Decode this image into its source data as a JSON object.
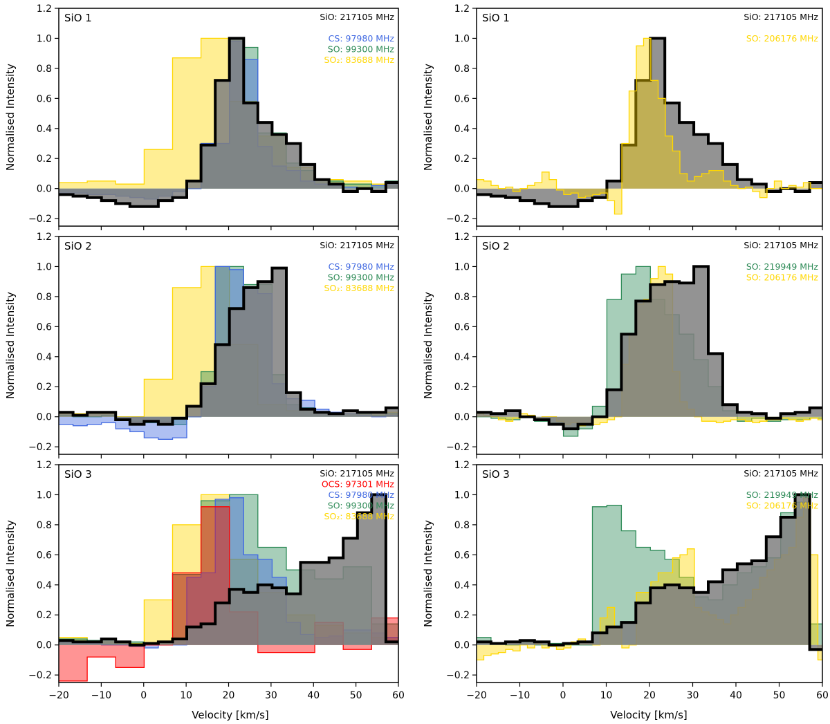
{
  "figure": {
    "xlabel": "Velocity [km/s]",
    "ylabel": "Normalised Intensity"
  },
  "colors": {
    "SiO": "#000000",
    "CS": "#4169e1",
    "SO": "#2e8b57",
    "SO2": "#ffd700",
    "OCS": "#ff0000",
    "SiO_fill": "#808080"
  },
  "chart_data": [
    {
      "type": "step-area",
      "panel": "left-1",
      "title": "SiO 1",
      "xlim": [
        -20,
        60
      ],
      "ylim": [
        -0.25,
        1.2
      ],
      "xticks": [
        -20,
        -10,
        0,
        10,
        20,
        30,
        40,
        50,
        60
      ],
      "yticks": [
        -0.2,
        0.0,
        0.2,
        0.4,
        0.6,
        0.8,
        1.0,
        1.2
      ],
      "ref_label": "SiO: 217105 MHz",
      "legend": [
        {
          "text": "CS: 97980 MHz",
          "mol": "CS"
        },
        {
          "text": "SO: 99300 MHz",
          "mol": "SO"
        },
        {
          "text": "SO₂: 83688 MHz",
          "mol": "SO2"
        }
      ],
      "series": [
        {
          "name": "SO2",
          "x0": -20,
          "dx": 6.7,
          "values": [
            0.04,
            0.05,
            0.03,
            0.26,
            0.87,
            1.0,
            0.58,
            0.35,
            0.14,
            0.06,
            0.05,
            0.03
          ]
        },
        {
          "name": "SO",
          "x0": -20,
          "dx": 3.35,
          "values": [
            -0.03,
            -0.03,
            -0.04,
            -0.04,
            -0.05,
            -0.06,
            -0.07,
            -0.05,
            -0.02,
            0.0,
            0.3,
            0.3,
            0.99,
            0.94,
            0.37,
            0.37,
            0.17,
            0.12,
            0.06,
            0.05,
            0.03,
            0.03,
            0.02,
            0.05
          ]
        },
        {
          "name": "CS",
          "x0": -20,
          "dx": 3.35,
          "values": [
            -0.03,
            -0.03,
            -0.04,
            -0.04,
            -0.05,
            -0.06,
            -0.07,
            -0.05,
            -0.02,
            0.0,
            0.3,
            0.3,
            0.98,
            0.86,
            0.28,
            0.15,
            0.12,
            0.05,
            0.03,
            0.02,
            0.01,
            0.0,
            0.02,
            0.03
          ]
        },
        {
          "name": "SiO",
          "x0": -20,
          "dx": 3.35,
          "values": [
            -0.04,
            -0.05,
            -0.06,
            -0.08,
            -0.1,
            -0.12,
            -0.12,
            -0.08,
            -0.06,
            0.05,
            0.29,
            0.72,
            1.0,
            0.57,
            0.44,
            0.36,
            0.3,
            0.16,
            0.06,
            0.03,
            -0.02,
            0.0,
            -0.02,
            0.04
          ]
        }
      ]
    },
    {
      "type": "step-area",
      "panel": "right-1",
      "title": "SiO 1",
      "xlim": [
        -20,
        60
      ],
      "ylim": [
        -0.25,
        1.2
      ],
      "xticks": [
        -20,
        -10,
        0,
        10,
        20,
        30,
        40,
        50,
        60
      ],
      "yticks": [
        -0.2,
        0.0,
        0.2,
        0.4,
        0.6,
        0.8,
        1.0,
        1.2
      ],
      "ref_label": "SiO: 217105 MHz",
      "legend": [
        {
          "text": "SO: 206176 MHz",
          "mol": "SO2"
        }
      ],
      "series": [
        {
          "name": "SiO",
          "x0": -20,
          "dx": 3.35,
          "values": [
            -0.04,
            -0.05,
            -0.06,
            -0.08,
            -0.1,
            -0.12,
            -0.12,
            -0.08,
            -0.06,
            0.05,
            0.29,
            0.72,
            1.0,
            0.57,
            0.44,
            0.36,
            0.3,
            0.16,
            0.06,
            0.03,
            -0.02,
            0.0,
            -0.02,
            0.04
          ]
        },
        {
          "name": "SO2",
          "x0": -20,
          "dx": 1.68,
          "values": [
            0.06,
            0.05,
            0.02,
            0.0,
            0.01,
            -0.02,
            0.0,
            0.02,
            0.04,
            0.11,
            0.06,
            -0.01,
            -0.04,
            -0.03,
            -0.06,
            -0.05,
            -0.04,
            -0.03,
            -0.08,
            -0.17,
            0.3,
            0.65,
            0.95,
            1.0,
            0.72,
            0.6,
            0.35,
            0.25,
            0.1,
            0.05,
            0.08,
            0.1,
            0.12,
            0.12,
            0.05,
            0.02,
            0.0,
            0.01,
            -0.02,
            -0.06,
            0.0,
            0.05,
            0.0,
            0.02,
            0.01,
            0.04,
            0.0,
            0.0
          ]
        }
      ]
    },
    {
      "type": "step-area",
      "panel": "left-2",
      "title": "SiO 2",
      "xlim": [
        -20,
        60
      ],
      "ylim": [
        -0.25,
        1.2
      ],
      "xticks": [
        -20,
        -10,
        0,
        10,
        20,
        30,
        40,
        50,
        60
      ],
      "yticks": [
        -0.2,
        0.0,
        0.2,
        0.4,
        0.6,
        0.8,
        1.0,
        1.2
      ],
      "ref_label": "SiO: 217105 MHz",
      "legend": [
        {
          "text": "CS: 97980 MHz",
          "mol": "CS"
        },
        {
          "text": "SO: 99300 MHz",
          "mol": "SO"
        },
        {
          "text": "SO₂: 83688 MHz",
          "mol": "SO2"
        }
      ],
      "series": [
        {
          "name": "SO2",
          "x0": -20,
          "dx": 6.7,
          "values": [
            0.02,
            0.02,
            0.0,
            0.25,
            0.86,
            1.0,
            0.48,
            0.08,
            0.04,
            0.03,
            0.02,
            0.03
          ]
        },
        {
          "name": "SO",
          "x0": -20,
          "dx": 3.35,
          "values": [
            0.01,
            0.0,
            0.0,
            0.01,
            -0.02,
            -0.03,
            -0.04,
            -0.03,
            -0.05,
            0.0,
            0.3,
            1.0,
            1.0,
            0.88,
            0.88,
            0.28,
            0.08,
            0.06,
            0.03,
            0.02,
            0.02,
            0.02,
            0.01,
            0.02
          ]
        },
        {
          "name": "CS",
          "x0": -20,
          "dx": 3.35,
          "values": [
            -0.05,
            -0.06,
            -0.05,
            -0.04,
            -0.08,
            -0.1,
            -0.14,
            -0.15,
            -0.14,
            0.0,
            0.2,
            1.0,
            0.98,
            0.85,
            0.82,
            0.22,
            0.12,
            0.11,
            0.05,
            0.03,
            0.02,
            0.01,
            0.0,
            0.01
          ]
        },
        {
          "name": "SiO",
          "x0": -20,
          "dx": 3.35,
          "values": [
            0.03,
            0.01,
            0.03,
            0.03,
            -0.02,
            -0.05,
            -0.03,
            -0.05,
            -0.01,
            0.07,
            0.22,
            0.48,
            0.72,
            0.86,
            0.9,
            0.99,
            0.16,
            0.05,
            0.03,
            0.02,
            0.04,
            0.03,
            0.03,
            0.06
          ]
        }
      ]
    },
    {
      "type": "step-area",
      "panel": "right-2",
      "title": "SiO 2",
      "xlim": [
        -20,
        60
      ],
      "ylim": [
        -0.25,
        1.2
      ],
      "xticks": [
        -20,
        -10,
        0,
        10,
        20,
        30,
        40,
        50,
        60
      ],
      "yticks": [
        -0.2,
        0.0,
        0.2,
        0.4,
        0.6,
        0.8,
        1.0,
        1.2
      ],
      "ref_label": "SiO: 217105 MHz",
      "legend": [
        {
          "text": "SO: 219949 MHz",
          "mol": "SO"
        },
        {
          "text": "SO: 206176 MHz",
          "mol": "SO2"
        }
      ],
      "series": [
        {
          "name": "SO",
          "x0": -20,
          "dx": 3.35,
          "values": [
            0.0,
            -0.01,
            -0.02,
            0.0,
            -0.03,
            -0.04,
            -0.13,
            -0.08,
            0.07,
            0.78,
            0.95,
            1.0,
            0.78,
            0.68,
            0.55,
            0.38,
            0.2,
            0.04,
            -0.03,
            -0.01,
            -0.03,
            -0.02,
            -0.02,
            -0.01
          ]
        },
        {
          "name": "SO2",
          "x0": -20,
          "dx": 1.68,
          "values": [
            0.02,
            0.01,
            0.0,
            -0.02,
            -0.03,
            -0.01,
            0.02,
            0.01,
            -0.02,
            0.0,
            0.0,
            -0.03,
            -0.05,
            -0.04,
            -0.06,
            -0.05,
            -0.05,
            -0.04,
            -0.02,
            0.0,
            0.35,
            0.55,
            0.75,
            0.78,
            0.92,
            1.0,
            0.95,
            0.3,
            0.1,
            0.05,
            0.0,
            -0.03,
            -0.03,
            -0.04,
            -0.03,
            -0.02,
            -0.02,
            -0.03,
            -0.04,
            -0.03,
            -0.02,
            -0.02,
            -0.01,
            -0.02,
            -0.03,
            -0.02,
            -0.01,
            -0.02
          ]
        },
        {
          "name": "SiO",
          "x0": -20,
          "dx": 3.35,
          "values": [
            0.03,
            0.02,
            0.04,
            0.0,
            -0.02,
            -0.05,
            -0.08,
            -0.05,
            0.0,
            0.18,
            0.55,
            0.77,
            0.88,
            0.9,
            0.89,
            1.0,
            0.42,
            0.08,
            0.03,
            0.02,
            -0.01,
            0.02,
            0.03,
            0.06
          ]
        }
      ]
    },
    {
      "type": "step-area",
      "panel": "left-3",
      "title": "SiO 3",
      "xlim": [
        -20,
        60
      ],
      "ylim": [
        -0.25,
        1.2
      ],
      "xticks": [
        -20,
        -10,
        0,
        10,
        20,
        30,
        40,
        50,
        60
      ],
      "yticks": [
        -0.2,
        0.0,
        0.2,
        0.4,
        0.6,
        0.8,
        1.0,
        1.2
      ],
      "ref_label": "SiO: 217105 MHz",
      "legend": [
        {
          "text": "OCS: 97301 MHz",
          "mol": "OCS"
        },
        {
          "text": "CS: 97980 MHz",
          "mol": "CS"
        },
        {
          "text": "SO: 99300 MHz",
          "mol": "SO"
        },
        {
          "text": "SO₂: 83688 MHz",
          "mol": "SO2"
        }
      ],
      "series": [
        {
          "name": "SO2",
          "x0": -20,
          "dx": 6.7,
          "values": [
            0.05,
            0.02,
            0.01,
            0.3,
            0.8,
            1.0,
            0.57,
            0.35,
            0.2,
            0.13,
            0.08,
            0.05
          ]
        },
        {
          "name": "SO",
          "x0": -20,
          "dx": 6.7,
          "values": [
            0.04,
            0.03,
            0.02,
            0.0,
            0.47,
            0.96,
            1.0,
            0.65,
            0.5,
            0.44,
            0.52,
            0.14
          ]
        },
        {
          "name": "CS",
          "x0": -20,
          "dx": 3.35,
          "values": [
            0.02,
            0.01,
            0.01,
            0.0,
            0.0,
            -0.01,
            -0.02,
            0.0,
            0.0,
            0.45,
            0.48,
            0.97,
            0.98,
            0.6,
            0.57,
            0.45,
            0.15,
            0.07,
            0.05,
            0.06,
            0.1,
            0.1,
            0.08,
            0.05
          ]
        },
        {
          "name": "OCS",
          "x0": -20,
          "dx": 6.7,
          "values": [
            -0.24,
            -0.08,
            -0.15,
            0.0,
            0.48,
            0.92,
            0.22,
            -0.05,
            -0.05,
            0.15,
            -0.03,
            0.18
          ]
        },
        {
          "name": "SiO",
          "x0": -20,
          "dx": 3.35,
          "values": [
            0.03,
            0.02,
            0.02,
            0.04,
            0.02,
            0.0,
            0.01,
            0.02,
            0.04,
            0.12,
            0.14,
            0.28,
            0.37,
            0.35,
            0.4,
            0.38,
            0.34,
            0.55,
            0.55,
            0.58,
            0.71,
            0.88,
            1.0,
            0.02
          ]
        }
      ]
    },
    {
      "type": "step-area",
      "panel": "right-3",
      "title": "SiO 3",
      "xlim": [
        -20,
        60
      ],
      "ylim": [
        -0.25,
        1.2
      ],
      "xticks": [
        -20,
        -10,
        0,
        10,
        20,
        30,
        40,
        50,
        60
      ],
      "yticks": [
        -0.2,
        0.0,
        0.2,
        0.4,
        0.6,
        0.8,
        1.0,
        1.2
      ],
      "ref_label": "SiO: 217105 MHz",
      "legend": [
        {
          "text": "SO: 219949 MHz",
          "mol": "SO"
        },
        {
          "text": "SO: 206176 MHz",
          "mol": "SO2"
        }
      ],
      "series": [
        {
          "name": "SO",
          "x0": -20,
          "dx": 3.35,
          "values": [
            0.05,
            0.01,
            0.0,
            0.02,
            0.0,
            0.01,
            0.0,
            0.0,
            0.92,
            0.93,
            0.76,
            0.65,
            0.63,
            0.57,
            0.45,
            0.32,
            0.3,
            0.4,
            0.48,
            0.52,
            0.58,
            0.88,
            0.95,
            0.14
          ]
        },
        {
          "name": "SO2",
          "x0": -20,
          "dx": 1.68,
          "values": [
            -0.1,
            -0.07,
            -0.06,
            -0.05,
            -0.03,
            -0.04,
            0.0,
            -0.02,
            0.01,
            -0.02,
            -0.01,
            -0.03,
            -0.02,
            0.02,
            0.04,
            0.02,
            0.0,
            0.18,
            0.25,
            0.12,
            -0.02,
            0.0,
            0.35,
            0.35,
            0.42,
            0.48,
            0.48,
            0.58,
            0.6,
            0.64,
            0.25,
            0.22,
            0.2,
            0.17,
            0.14,
            0.2,
            0.25,
            0.3,
            0.37,
            0.45,
            0.5,
            0.57,
            0.6,
            0.65,
            0.85,
            0.98,
            0.6,
            -0.1
          ]
        },
        {
          "name": "SiO",
          "x0": -20,
          "dx": 3.35,
          "values": [
            0.02,
            0.01,
            0.02,
            0.03,
            0.02,
            0.0,
            0.01,
            0.02,
            0.08,
            0.12,
            0.15,
            0.28,
            0.38,
            0.4,
            0.38,
            0.35,
            0.42,
            0.5,
            0.54,
            0.56,
            0.72,
            0.85,
            1.0,
            -0.03
          ]
        }
      ]
    }
  ]
}
